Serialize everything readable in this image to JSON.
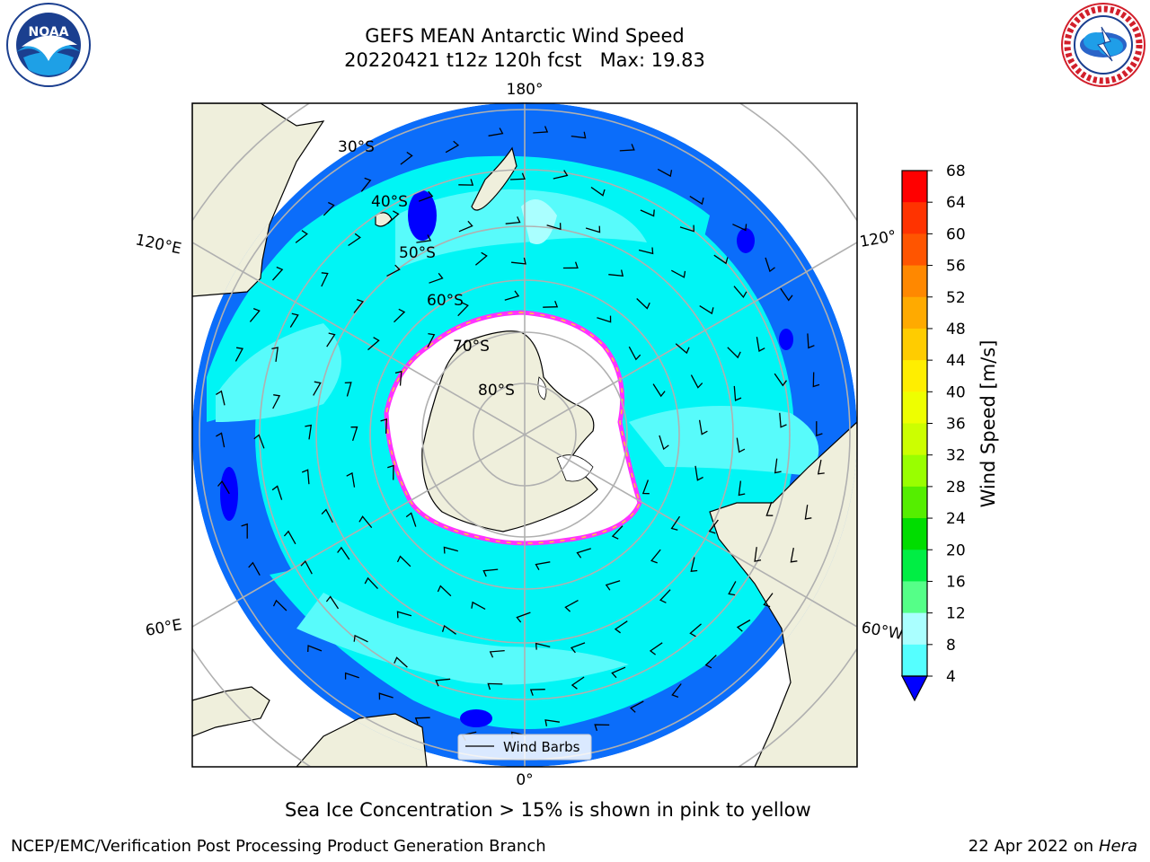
{
  "header": {
    "title": "GEFS MEAN Antarctic Wind Speed",
    "subtitle": "20220421 t12z 120h fcst   Max: 19.83"
  },
  "map": {
    "projection": "south-polar-stereographic",
    "latitude_labels": [
      "30°S",
      "40°S",
      "50°S",
      "60°S",
      "70°S",
      "80°S"
    ],
    "longitude_labels": {
      "top": "180°",
      "bottom": "0°",
      "left_upper": "120°E",
      "left_lower": "60°E",
      "right_upper": "120°",
      "right_lower": "60°W"
    },
    "legend_label": "Wind Barbs",
    "colors": {
      "ocean_low": "#0b6dfa",
      "ocean_mid": "#00f5f5",
      "ocean_high": "#58fbfb",
      "land": "#efefdc",
      "sea_ice_edge": "#ff33ff",
      "ice_shelf": "#ffffff"
    }
  },
  "colorbar": {
    "label": "Wind Speed [m/s]",
    "ticks": [
      "68",
      "64",
      "60",
      "56",
      "52",
      "48",
      "44",
      "40",
      "36",
      "32",
      "28",
      "24",
      "20",
      "16",
      "12",
      "8",
      "4"
    ],
    "bands": [
      "#ff0000",
      "#ff3300",
      "#ff5500",
      "#ff8800",
      "#ffaa00",
      "#ffcc00",
      "#ffee00",
      "#eeff00",
      "#ccff00",
      "#99ff00",
      "#55ee00",
      "#00dd00",
      "#00ee44",
      "#55ff88",
      "#aaffff",
      "#55ffff",
      "#00f0f0",
      "#0b6dfa"
    ],
    "under_color": "#0000ff"
  },
  "caption": "Sea Ice Concentration > 15% is shown in pink to yellow",
  "footer": {
    "left": "NCEP/EMC/Verification Post Processing Product Generation Branch",
    "right_date": "22 Apr 2022 on ",
    "right_host": "Hera"
  }
}
